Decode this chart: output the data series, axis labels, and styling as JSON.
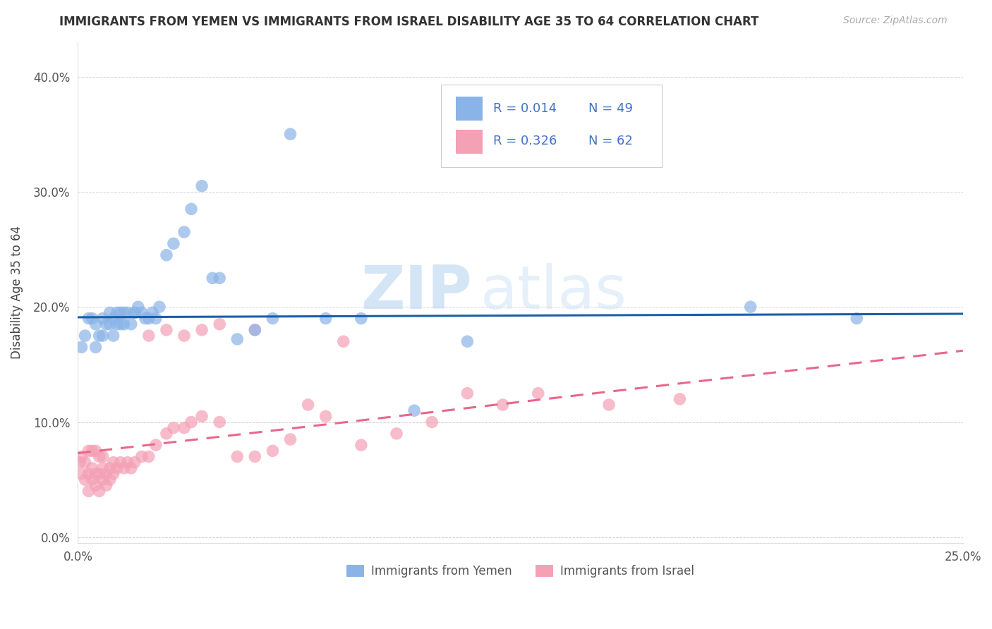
{
  "title": "IMMIGRANTS FROM YEMEN VS IMMIGRANTS FROM ISRAEL DISABILITY AGE 35 TO 64 CORRELATION CHART",
  "source": "Source: ZipAtlas.com",
  "ylabel": "Disability Age 35 to 64",
  "xlim": [
    0.0,
    0.25
  ],
  "ylim": [
    -0.005,
    0.43
  ],
  "xticks": [
    0.0,
    0.25
  ],
  "xtick_labels": [
    "0.0%",
    "25.0%"
  ],
  "yticks": [
    0.0,
    0.1,
    0.2,
    0.3,
    0.4
  ],
  "ytick_labels": [
    "0.0%",
    "10.0%",
    "20.0%",
    "30.0%",
    "40.0%"
  ],
  "watermark_zip": "ZIP",
  "watermark_atlas": "atlas",
  "legend_r1": "R = 0.014",
  "legend_n1": "N = 49",
  "legend_r2": "R = 0.326",
  "legend_n2": "N = 62",
  "legend_label1": "Immigrants from Yemen",
  "legend_label2": "Immigrants from Israel",
  "color_yemen": "#8ab4e8",
  "color_israel": "#f4a0b5",
  "color_line_yemen": "#1a5fa8",
  "color_line_israel": "#e8678a",
  "color_text_legend": "#4472c4",
  "yemen_x": [
    0.001,
    0.002,
    0.003,
    0.004,
    0.005,
    0.005,
    0.006,
    0.007,
    0.007,
    0.008,
    0.009,
    0.009,
    0.01,
    0.01,
    0.011,
    0.011,
    0.012,
    0.012,
    0.013,
    0.013,
    0.014,
    0.015,
    0.016,
    0.016,
    0.017,
    0.018,
    0.019,
    0.02,
    0.021,
    0.022,
    0.023,
    0.025,
    0.027,
    0.03,
    0.032,
    0.035,
    0.038,
    0.04,
    0.045,
    0.05,
    0.055,
    0.06,
    0.07,
    0.08,
    0.095,
    0.11,
    0.13,
    0.19,
    0.22
  ],
  "yemen_y": [
    0.165,
    0.175,
    0.19,
    0.19,
    0.185,
    0.165,
    0.175,
    0.19,
    0.175,
    0.185,
    0.195,
    0.185,
    0.19,
    0.175,
    0.195,
    0.185,
    0.195,
    0.185,
    0.195,
    0.185,
    0.195,
    0.185,
    0.195,
    0.195,
    0.2,
    0.195,
    0.19,
    0.19,
    0.195,
    0.19,
    0.2,
    0.245,
    0.255,
    0.265,
    0.285,
    0.305,
    0.225,
    0.225,
    0.172,
    0.18,
    0.19,
    0.35,
    0.19,
    0.19,
    0.11,
    0.17,
    0.33,
    0.2,
    0.19
  ],
  "israel_x": [
    0.0005,
    0.001,
    0.001,
    0.002,
    0.002,
    0.003,
    0.003,
    0.003,
    0.004,
    0.004,
    0.004,
    0.005,
    0.005,
    0.005,
    0.006,
    0.006,
    0.006,
    0.007,
    0.007,
    0.007,
    0.008,
    0.008,
    0.009,
    0.009,
    0.01,
    0.01,
    0.011,
    0.012,
    0.013,
    0.014,
    0.015,
    0.016,
    0.018,
    0.02,
    0.022,
    0.025,
    0.027,
    0.03,
    0.032,
    0.035,
    0.04,
    0.045,
    0.05,
    0.055,
    0.06,
    0.065,
    0.07,
    0.075,
    0.08,
    0.09,
    0.1,
    0.11,
    0.12,
    0.13,
    0.15,
    0.17,
    0.02,
    0.025,
    0.03,
    0.035,
    0.04,
    0.05
  ],
  "israel_y": [
    0.065,
    0.055,
    0.07,
    0.05,
    0.065,
    0.04,
    0.055,
    0.075,
    0.05,
    0.06,
    0.075,
    0.045,
    0.055,
    0.075,
    0.04,
    0.055,
    0.07,
    0.05,
    0.06,
    0.07,
    0.045,
    0.055,
    0.05,
    0.06,
    0.055,
    0.065,
    0.06,
    0.065,
    0.06,
    0.065,
    0.06,
    0.065,
    0.07,
    0.07,
    0.08,
    0.09,
    0.095,
    0.095,
    0.1,
    0.105,
    0.1,
    0.07,
    0.07,
    0.075,
    0.085,
    0.115,
    0.105,
    0.17,
    0.08,
    0.09,
    0.1,
    0.125,
    0.115,
    0.125,
    0.115,
    0.12,
    0.175,
    0.18,
    0.175,
    0.18,
    0.185,
    0.18
  ],
  "yemen_line_x": [
    0.0,
    0.25
  ],
  "yemen_line_y": [
    0.191,
    0.194
  ],
  "israel_line_x": [
    0.0,
    0.25
  ],
  "israel_line_y": [
    0.073,
    0.162
  ]
}
